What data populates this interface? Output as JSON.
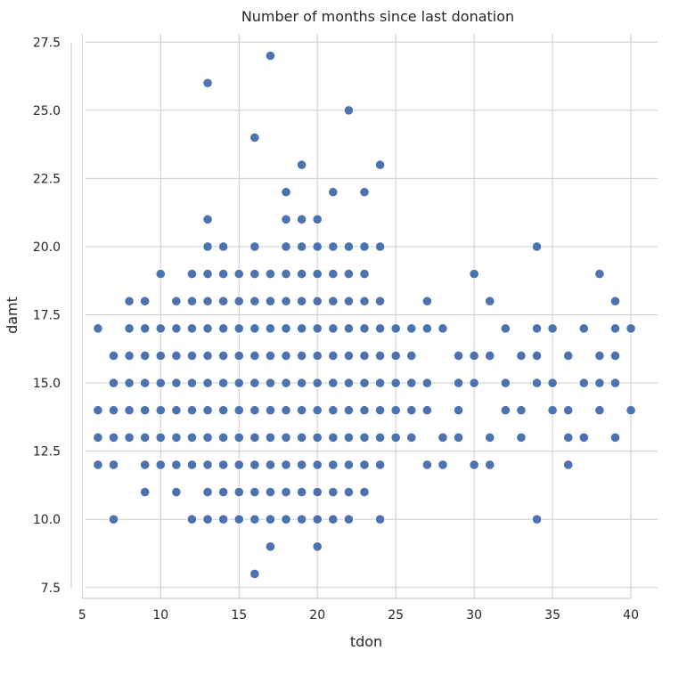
{
  "chart_data": {
    "type": "scatter",
    "title": "Number of months since last donation",
    "xlabel": "tdon",
    "ylabel": "damt",
    "xlim": [
      4.3,
      41.7
    ],
    "ylim": [
      7.1,
      28.0
    ],
    "grid": true,
    "x_ticks": [
      5,
      10,
      15,
      20,
      25,
      30,
      35,
      40
    ],
    "x_tick_labels": [
      "5",
      "10",
      "15",
      "20",
      "25",
      "30",
      "35",
      "40"
    ],
    "y_ticks": [
      7.5,
      10.0,
      12.5,
      15.0,
      17.5,
      20.0,
      22.5,
      25.0,
      27.5
    ],
    "y_tick_labels": [
      "7.5",
      "10.0",
      "12.5",
      "15.0",
      "17.5",
      "20.0",
      "22.5",
      "25.0",
      "27.5"
    ],
    "marker_color": "#4c72b0",
    "series": [
      {
        "points": [
          [
            6,
            17
          ],
          [
            6,
            14
          ],
          [
            6,
            13
          ],
          [
            6,
            12
          ],
          [
            7,
            16
          ],
          [
            7,
            15
          ],
          [
            7,
            14
          ],
          [
            7,
            13
          ],
          [
            7,
            12
          ],
          [
            7,
            10
          ],
          [
            8,
            18
          ],
          [
            8,
            17
          ],
          [
            8,
            16
          ],
          [
            8,
            15
          ],
          [
            8,
            14
          ],
          [
            8,
            13
          ],
          [
            9,
            18
          ],
          [
            9,
            17
          ],
          [
            9,
            16
          ],
          [
            9,
            15
          ],
          [
            9,
            14
          ],
          [
            9,
            13
          ],
          [
            9,
            12
          ],
          [
            9,
            11
          ],
          [
            10,
            19
          ],
          [
            10,
            17
          ],
          [
            10,
            16
          ],
          [
            10,
            15
          ],
          [
            10,
            14
          ],
          [
            10,
            13
          ],
          [
            10,
            12
          ],
          [
            11,
            18
          ],
          [
            11,
            17
          ],
          [
            11,
            16
          ],
          [
            11,
            15
          ],
          [
            11,
            14
          ],
          [
            11,
            13
          ],
          [
            11,
            12
          ],
          [
            11,
            11
          ],
          [
            12,
            19
          ],
          [
            12,
            18
          ],
          [
            12,
            17
          ],
          [
            12,
            16
          ],
          [
            12,
            15
          ],
          [
            12,
            14
          ],
          [
            12,
            13
          ],
          [
            12,
            12
          ],
          [
            12,
            10
          ],
          [
            13,
            26
          ],
          [
            13,
            21
          ],
          [
            13,
            20
          ],
          [
            13,
            19
          ],
          [
            13,
            18
          ],
          [
            13,
            17
          ],
          [
            13,
            16
          ],
          [
            13,
            15
          ],
          [
            13,
            14
          ],
          [
            13,
            13
          ],
          [
            13,
            12
          ],
          [
            13,
            11
          ],
          [
            13,
            10
          ],
          [
            14,
            20
          ],
          [
            14,
            19
          ],
          [
            14,
            18
          ],
          [
            14,
            17
          ],
          [
            14,
            16
          ],
          [
            14,
            15
          ],
          [
            14,
            14
          ],
          [
            14,
            13
          ],
          [
            14,
            12
          ],
          [
            14,
            11
          ],
          [
            14,
            10
          ],
          [
            15,
            19
          ],
          [
            15,
            18
          ],
          [
            15,
            17
          ],
          [
            15,
            16
          ],
          [
            15,
            15
          ],
          [
            15,
            14
          ],
          [
            15,
            13
          ],
          [
            15,
            12
          ],
          [
            15,
            11
          ],
          [
            15,
            10
          ],
          [
            16,
            24
          ],
          [
            16,
            20
          ],
          [
            16,
            19
          ],
          [
            16,
            18
          ],
          [
            16,
            17
          ],
          [
            16,
            16
          ],
          [
            16,
            15
          ],
          [
            16,
            14
          ],
          [
            16,
            13
          ],
          [
            16,
            12
          ],
          [
            16,
            11
          ],
          [
            16,
            10
          ],
          [
            16,
            8
          ],
          [
            17,
            27
          ],
          [
            17,
            19
          ],
          [
            17,
            18
          ],
          [
            17,
            17
          ],
          [
            17,
            16
          ],
          [
            17,
            15
          ],
          [
            17,
            14
          ],
          [
            17,
            13
          ],
          [
            17,
            12
          ],
          [
            17,
            11
          ],
          [
            17,
            10
          ],
          [
            17,
            9
          ],
          [
            18,
            22
          ],
          [
            18,
            21
          ],
          [
            18,
            20
          ],
          [
            18,
            19
          ],
          [
            18,
            18
          ],
          [
            18,
            17
          ],
          [
            18,
            16
          ],
          [
            18,
            15
          ],
          [
            18,
            14
          ],
          [
            18,
            13
          ],
          [
            18,
            12
          ],
          [
            18,
            11
          ],
          [
            18,
            10
          ],
          [
            19,
            23
          ],
          [
            19,
            21
          ],
          [
            19,
            20
          ],
          [
            19,
            19
          ],
          [
            19,
            18
          ],
          [
            19,
            17
          ],
          [
            19,
            16
          ],
          [
            19,
            15
          ],
          [
            19,
            14
          ],
          [
            19,
            13
          ],
          [
            19,
            12
          ],
          [
            19,
            11
          ],
          [
            19,
            10
          ],
          [
            20,
            21
          ],
          [
            20,
            20
          ],
          [
            20,
            19
          ],
          [
            20,
            18
          ],
          [
            20,
            17
          ],
          [
            20,
            16
          ],
          [
            20,
            15
          ],
          [
            20,
            14
          ],
          [
            20,
            13
          ],
          [
            20,
            12
          ],
          [
            20,
            11
          ],
          [
            20,
            10
          ],
          [
            20,
            9
          ],
          [
            21,
            22
          ],
          [
            21,
            20
          ],
          [
            21,
            19
          ],
          [
            21,
            18
          ],
          [
            21,
            17
          ],
          [
            21,
            16
          ],
          [
            21,
            15
          ],
          [
            21,
            14
          ],
          [
            21,
            13
          ],
          [
            21,
            12
          ],
          [
            21,
            11
          ],
          [
            21,
            10
          ],
          [
            22,
            25
          ],
          [
            22,
            20
          ],
          [
            22,
            19
          ],
          [
            22,
            18
          ],
          [
            22,
            17
          ],
          [
            22,
            16
          ],
          [
            22,
            15
          ],
          [
            22,
            14
          ],
          [
            22,
            13
          ],
          [
            22,
            12
          ],
          [
            22,
            11
          ],
          [
            22,
            10
          ],
          [
            23,
            22
          ],
          [
            23,
            20
          ],
          [
            23,
            19
          ],
          [
            23,
            18
          ],
          [
            23,
            17
          ],
          [
            23,
            16
          ],
          [
            23,
            15
          ],
          [
            23,
            14
          ],
          [
            23,
            13
          ],
          [
            23,
            12
          ],
          [
            23,
            11
          ],
          [
            24,
            23
          ],
          [
            24,
            20
          ],
          [
            24,
            18
          ],
          [
            24,
            17
          ],
          [
            24,
            16
          ],
          [
            24,
            15
          ],
          [
            24,
            14
          ],
          [
            24,
            13
          ],
          [
            24,
            12
          ],
          [
            24,
            10
          ],
          [
            25,
            17
          ],
          [
            25,
            16
          ],
          [
            25,
            15
          ],
          [
            25,
            14
          ],
          [
            25,
            13
          ],
          [
            26,
            17
          ],
          [
            26,
            16
          ],
          [
            26,
            15
          ],
          [
            26,
            14
          ],
          [
            26,
            13
          ],
          [
            27,
            18
          ],
          [
            27,
            17
          ],
          [
            27,
            15
          ],
          [
            27,
            14
          ],
          [
            27,
            12
          ],
          [
            28,
            17
          ],
          [
            28,
            13
          ],
          [
            28,
            12
          ],
          [
            29,
            16
          ],
          [
            29,
            15
          ],
          [
            29,
            14
          ],
          [
            29,
            13
          ],
          [
            30,
            19
          ],
          [
            30,
            16
          ],
          [
            30,
            15
          ],
          [
            30,
            12
          ],
          [
            31,
            18
          ],
          [
            31,
            16
          ],
          [
            31,
            13
          ],
          [
            31,
            12
          ],
          [
            32,
            17
          ],
          [
            32,
            15
          ],
          [
            32,
            14
          ],
          [
            33,
            16
          ],
          [
            33,
            14
          ],
          [
            33,
            13
          ],
          [
            34,
            20
          ],
          [
            34,
            17
          ],
          [
            34,
            16
          ],
          [
            34,
            15
          ],
          [
            34,
            10
          ],
          [
            35,
            17
          ],
          [
            35,
            15
          ],
          [
            35,
            14
          ],
          [
            36,
            16
          ],
          [
            36,
            14
          ],
          [
            36,
            13
          ],
          [
            36,
            12
          ],
          [
            37,
            17
          ],
          [
            37,
            15
          ],
          [
            37,
            13
          ],
          [
            38,
            19
          ],
          [
            38,
            16
          ],
          [
            38,
            15
          ],
          [
            38,
            14
          ],
          [
            39,
            18
          ],
          [
            39,
            17
          ],
          [
            39,
            16
          ],
          [
            39,
            15
          ],
          [
            39,
            13
          ],
          [
            40,
            17
          ],
          [
            40,
            14
          ]
        ]
      }
    ]
  }
}
